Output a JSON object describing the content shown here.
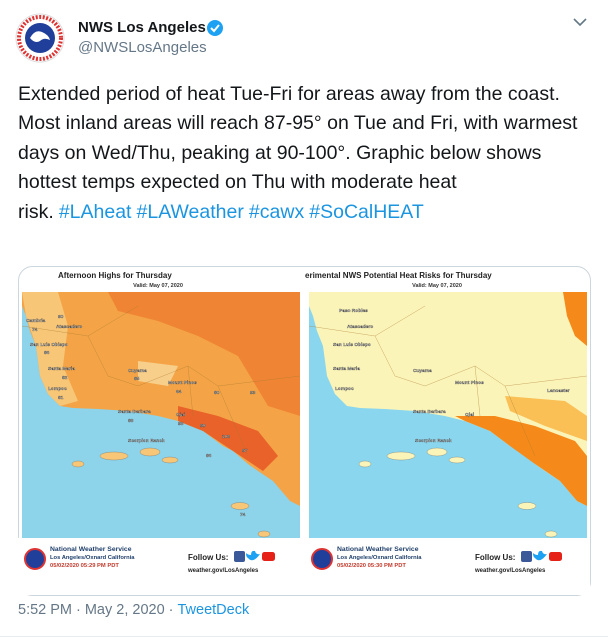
{
  "author": {
    "name": "NWS Los Angeles",
    "handle": "@NWSLosAngeles"
  },
  "tweet": {
    "text": "Extended period of heat Tue-Fri for areas away from the coast. Most inland areas will reach 87-95° on Tue and Fri, with warmest days on Wed/Thu, peaking at 90-100°. Graphic below shows hottest temps expected on Thu with moderate heat risk.",
    "hashtags": [
      "#LAheat",
      "#LAWeather",
      "#cawx",
      "#SoCalHEAT"
    ]
  },
  "images": [
    {
      "title": "Afternoon Highs for Thursday",
      "valid": "Valid: May 07, 2020",
      "labels": [
        "Cambria",
        "74",
        "90",
        "Atascadero",
        "San Luis Obispo",
        "86",
        "Santa Maria",
        "82",
        "Lompoc",
        "81",
        "Cuyama",
        "85",
        "Mount Pinos",
        "64",
        "80",
        "93",
        "Santa Barbara",
        "88",
        "Ojai",
        "98",
        "99",
        "100",
        "97",
        "86",
        "Scorpion Ranch",
        "74"
      ],
      "footer": {
        "office": "National Weather Service",
        "location": "Los Angeles/Oxnard California",
        "issued": "05/02/2020 05:29 PM PDT",
        "follow": "Follow Us:",
        "website": "weather.gov/LosAngeles"
      }
    },
    {
      "title": "erimental NWS Potential Heat Risks for Thursday",
      "valid": "Valid: May 07, 2020",
      "labels": [
        "Paso Robles",
        "Atascadero",
        "San Luis Obispo",
        "Santa Maria",
        "Cuyama",
        "Mount Pinos",
        "Lompoc",
        "Santa Barbara",
        "Ojai",
        "Lancaster",
        "Scorpion Ranch"
      ],
      "footer": {
        "office": "National Weather Service",
        "location": "Los Angeles/Oxnard California",
        "issued": "05/02/2020 05:30 PM PDT",
        "follow": "Follow Us:",
        "website": "weather.gov/LosAngeles"
      }
    }
  ],
  "meta": {
    "time": "5:52 PM",
    "date": "May 2, 2020",
    "source": "TweetDeck",
    "separator": "·"
  }
}
